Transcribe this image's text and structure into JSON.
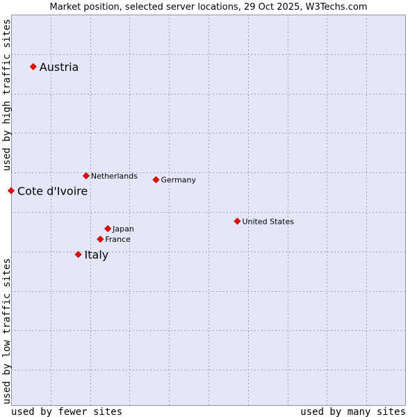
{
  "chart_data": {
    "type": "scatter",
    "title": "Market position, selected server locations, 29 Oct 2025, W3Techs.com",
    "xlabel_low": "used by fewer sites",
    "xlabel_high": "used by many sites",
    "ylabel_low": "used by low traffic sites",
    "ylabel_high": "used by high traffic sites",
    "xlim": [
      0,
      100
    ],
    "ylim": [
      0,
      100
    ],
    "grid": true,
    "colors": {
      "plot_bg": "#e6e6f8",
      "grid": "#a0a0b8",
      "point": "#ff0000",
      "point_stroke": "#990000"
    },
    "points": [
      {
        "label": "Austria",
        "x": 5.6,
        "y": 86.7,
        "emphasis": true
      },
      {
        "label": "Cote d'Ivoire",
        "x": 0.0,
        "y": 55.0,
        "emphasis": true
      },
      {
        "label": "Italy",
        "x": 17.0,
        "y": 38.7,
        "emphasis": true
      },
      {
        "label": "Netherlands",
        "x": 19.0,
        "y": 58.8,
        "emphasis": false
      },
      {
        "label": "Germany",
        "x": 36.7,
        "y": 57.8,
        "emphasis": false
      },
      {
        "label": "United States",
        "x": 57.3,
        "y": 47.2,
        "emphasis": false
      },
      {
        "label": "Japan",
        "x": 24.5,
        "y": 45.3,
        "emphasis": false
      },
      {
        "label": "France",
        "x": 22.6,
        "y": 42.6,
        "emphasis": false
      }
    ]
  }
}
